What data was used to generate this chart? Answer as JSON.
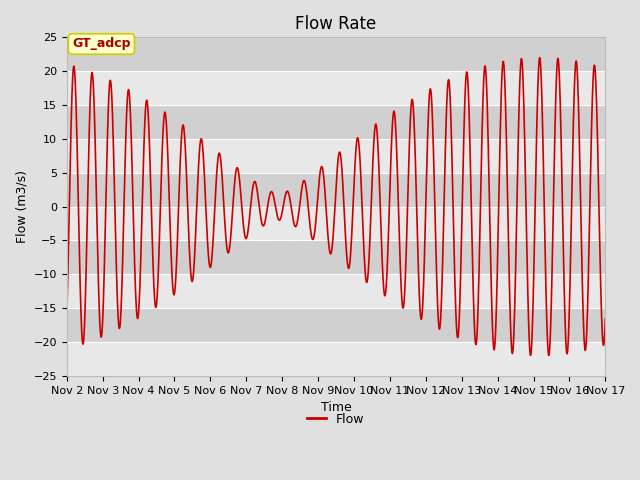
{
  "title": "Flow Rate",
  "xlabel": "Time",
  "ylabel": "Flow (m3/s)",
  "ylim": [
    -25,
    25
  ],
  "yticks": [
    -25,
    -20,
    -15,
    -10,
    -5,
    0,
    5,
    10,
    15,
    20,
    25
  ],
  "line_color": "#cc0000",
  "line_width": 1.2,
  "bg_color": "#e0e0e0",
  "band_color_dark": "#d0d0d0",
  "band_color_light": "#e8e8e8",
  "legend_label": "Flow",
  "annotation_text": "GT_adcp",
  "annotation_bg": "#ffffcc",
  "annotation_border": "#cccc00",
  "title_fontsize": 12,
  "axis_fontsize": 9,
  "tick_fontsize": 8
}
